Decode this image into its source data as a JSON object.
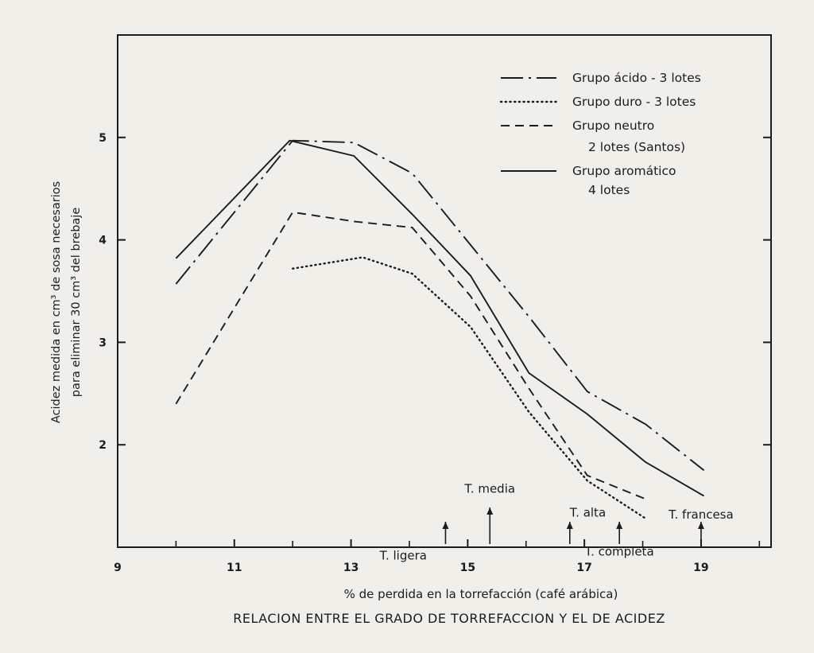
{
  "chart_data": {
    "type": "line",
    "title": "RELACION ENTRE EL GRADO DE TORREFACCION Y EL DE ACIDEZ",
    "xlabel": "% de perdida en la torrefacción (café arábica)",
    "ylabel_line1": "Acidez medida en cm³ de sosa necesarios",
    "ylabel_line2": "para eliminar 30 cm³ del brebaje",
    "xlim": [
      9,
      20.2
    ],
    "ylim": [
      1,
      6
    ],
    "x_ticks": [
      9,
      11,
      13,
      15,
      17,
      19
    ],
    "y_ticks": [
      2,
      3,
      4,
      5
    ],
    "grid": false,
    "legend_position": "top-right",
    "series": [
      {
        "name": "Grupo ácido - 3 lotes",
        "style": "dashdot",
        "points": [
          [
            10,
            3.57
          ],
          [
            12,
            4.97
          ],
          [
            13.05,
            4.95
          ],
          [
            14.05,
            4.65
          ],
          [
            15.05,
            3.95
          ],
          [
            16.05,
            3.25
          ],
          [
            17.05,
            2.52
          ],
          [
            18.05,
            2.2
          ],
          [
            19.05,
            1.75
          ]
        ]
      },
      {
        "name": "Grupo duro - 3 lotes",
        "style": "dotted",
        "points": [
          [
            12,
            3.72
          ],
          [
            13.2,
            3.83
          ],
          [
            14.05,
            3.67
          ],
          [
            15.05,
            3.15
          ],
          [
            16.05,
            2.32
          ],
          [
            17.05,
            1.65
          ],
          [
            18.05,
            1.28
          ]
        ]
      },
      {
        "name": "Grupo neutro",
        "name_line2": "2 lotes (Santos)",
        "style": "dashed",
        "points": [
          [
            10,
            2.4
          ],
          [
            12,
            4.27
          ],
          [
            13.05,
            4.18
          ],
          [
            14.05,
            4.12
          ],
          [
            15.05,
            3.45
          ],
          [
            16.05,
            2.55
          ],
          [
            17.05,
            1.7
          ],
          [
            18.05,
            1.47
          ]
        ]
      },
      {
        "name": "Grupo aromático",
        "name_line2": "4 lotes",
        "style": "solid",
        "points": [
          [
            10,
            3.82
          ],
          [
            11.95,
            4.97
          ],
          [
            13.05,
            4.82
          ],
          [
            14.05,
            4.25
          ],
          [
            15.05,
            3.65
          ],
          [
            16.05,
            2.7
          ],
          [
            17.05,
            2.3
          ],
          [
            18.05,
            1.83
          ],
          [
            19.05,
            1.5
          ]
        ]
      }
    ],
    "annotations": [
      {
        "text": "T. ligera",
        "arrow_x": 14.62,
        "label_x": 14.3,
        "label_y": 0.88,
        "anchor": "end"
      },
      {
        "text": "T. media",
        "arrow_x": 15.38,
        "label_x": 15.38,
        "label_y": 1.53,
        "anchor": "middle"
      },
      {
        "text": "T. alta",
        "arrow_x": 16.75,
        "label_x": 16.75,
        "label_y": 1.3,
        "anchor": "start"
      },
      {
        "text": "T. completa",
        "arrow_x": 17.6,
        "label_x": 17.6,
        "label_y": 0.92,
        "anchor": "middle"
      },
      {
        "text": "T. francesa",
        "arrow_x": 19.0,
        "label_x": 19.0,
        "label_y": 1.28,
        "anchor": "middle"
      }
    ]
  }
}
